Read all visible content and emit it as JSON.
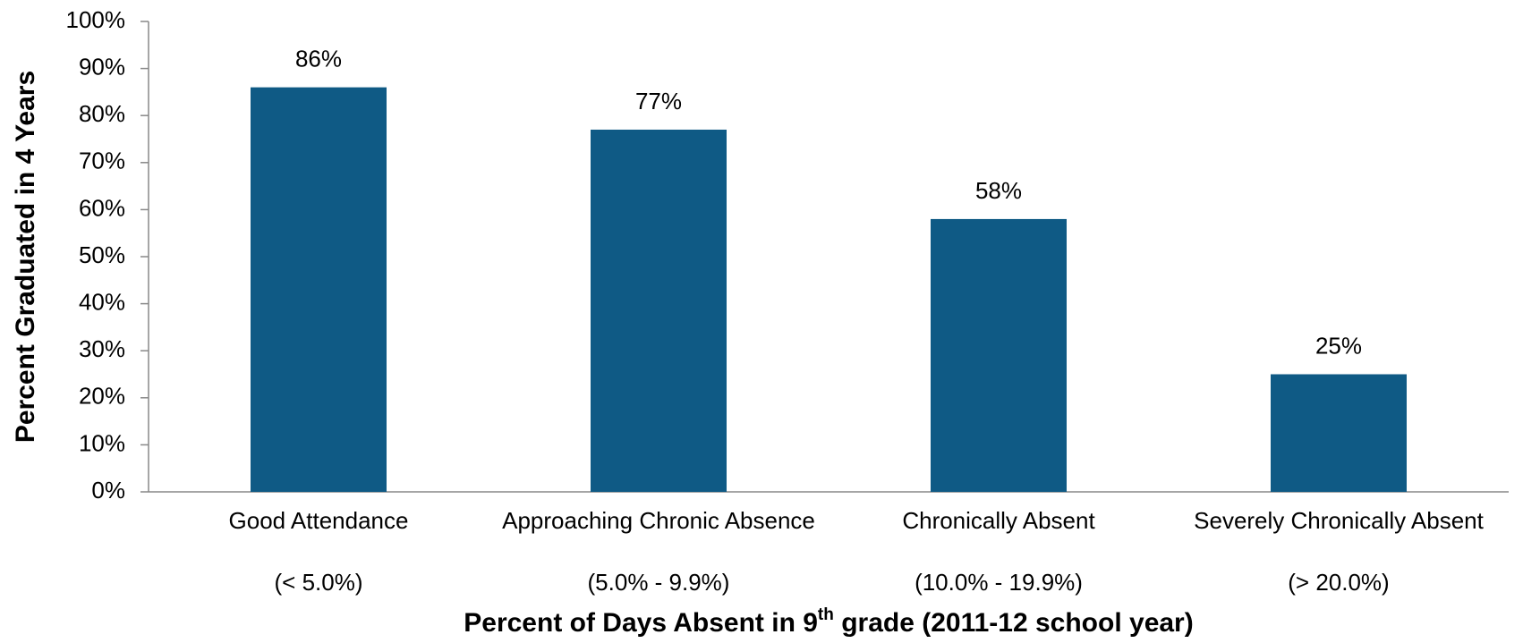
{
  "chart_data": {
    "type": "bar",
    "x_label": "Percent of Days Absent in 9th grade (2011-12 school year)",
    "y_label": "Percent Graduated in 4 Years",
    "categories": [
      "Good Attendance",
      "Approaching Chronic Absence",
      "Chronically Absent",
      "Severely Chronically Absent"
    ],
    "category_ranges": [
      "(< 5.0%)",
      "(5.0% - 9.9%)",
      "(10.0% - 19.9%)",
      "(> 20.0%)"
    ],
    "values": [
      86,
      77,
      58,
      25
    ],
    "value_labels": [
      "86%",
      "77%",
      "58%",
      "25%"
    ],
    "color": "#0f5a85",
    "ylim": [
      0,
      100
    ],
    "yticks": [
      {
        "value": 0,
        "label": "0%"
      },
      {
        "value": 10,
        "label": "10%"
      },
      {
        "value": 20,
        "label": "20%"
      },
      {
        "value": 30,
        "label": "30%"
      },
      {
        "value": 40,
        "label": "40%"
      },
      {
        "value": 50,
        "label": "50%"
      },
      {
        "value": 60,
        "label": "60%"
      },
      {
        "value": 70,
        "label": "70%"
      },
      {
        "value": 80,
        "label": "80%"
      },
      {
        "value": 90,
        "label": "90%"
      },
      {
        "value": 100,
        "label": "100%"
      }
    ],
    "grid": false
  }
}
